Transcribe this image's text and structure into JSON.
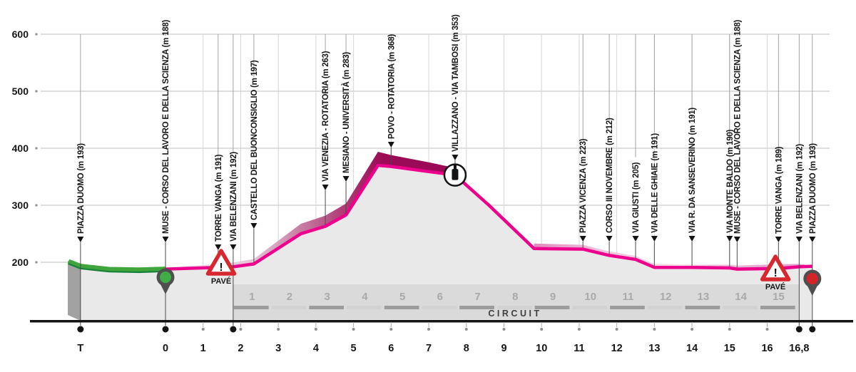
{
  "chart_data": {
    "type": "area",
    "description": "Race elevation profile with circuit laps",
    "y_axis": {
      "ticks": [
        600,
        500,
        400,
        300,
        200
      ],
      "unit": "m"
    },
    "x_axis": {
      "unit": "km",
      "ticks": [
        {
          "label": "T",
          "km": -2.26
        },
        {
          "label": "0",
          "km": 0
        },
        {
          "label": "1",
          "km": 1
        },
        {
          "label": "2",
          "km": 2
        },
        {
          "label": "3",
          "km": 3
        },
        {
          "label": "4",
          "km": 4
        },
        {
          "label": "5",
          "km": 5
        },
        {
          "label": "6",
          "km": 6
        },
        {
          "label": "7",
          "km": 7
        },
        {
          "label": "8",
          "km": 8
        },
        {
          "label": "9",
          "km": 9
        },
        {
          "label": "10",
          "km": 10
        },
        {
          "label": "11",
          "km": 11
        },
        {
          "label": "12",
          "km": 12
        },
        {
          "label": "13",
          "km": 13
        },
        {
          "label": "14",
          "km": 14
        },
        {
          "label": "15",
          "km": 15
        },
        {
          "label": "16",
          "km": 16
        },
        {
          "label": "16,8",
          "km": 16.85
        }
      ],
      "dot_kms": [
        -2.26,
        0,
        1.8,
        16.85,
        17.2
      ]
    },
    "waypoints": [
      {
        "label": "PIAZZA DUOMO",
        "alt": 193,
        "km": -2.26,
        "dot": true
      },
      {
        "label": "MUSE - CORSO DEL LAVORO E DELLA SCIENZA",
        "alt": 188,
        "km": 0,
        "dot": true
      },
      {
        "label": "TORRE VANGA",
        "alt": 191,
        "km": 1.4,
        "dot": false
      },
      {
        "label": "VIA BELENZANI",
        "alt": 192,
        "km": 1.8,
        "dot": true
      },
      {
        "label": "CASTELLO DEL BUONCONSIGLIO",
        "alt": 197,
        "km": 2.35,
        "dot": false
      },
      {
        "label": "VIA VENEZIA - ROTATORIA",
        "alt": 263,
        "km": 4.25,
        "dot": false
      },
      {
        "label": "MESIANO - UNIVERSITÀ",
        "alt": 283,
        "km": 4.8,
        "dot": false
      },
      {
        "label": "POVO - ROTATORIA",
        "alt": 368,
        "km": 6.0,
        "dot": false
      },
      {
        "label": "VILLAZZANO - VIA TAMBOSI",
        "alt": 353,
        "km": 7.7,
        "dot": false
      },
      {
        "label": "PIAZZA VICENZA",
        "alt": 223,
        "km": 11.1,
        "dot": false
      },
      {
        "label": "CORSO III NOVEMBRE",
        "alt": 212,
        "km": 11.8,
        "dot": false
      },
      {
        "label": "VIA GIUSTI",
        "alt": 205,
        "km": 12.5,
        "dot": false
      },
      {
        "label": "VIA DELLE GHIAIE",
        "alt": 191,
        "km": 13.0,
        "dot": false
      },
      {
        "label": "VIA R. DA SANSEVERINO",
        "alt": 191,
        "km": 14.0,
        "dot": false
      },
      {
        "label": "VIA MONTE BALDO",
        "alt": 190,
        "km": 15.0,
        "dot": false
      },
      {
        "label": "MUSE - CORSO DEL LAVORO E DELLA SCIENZA",
        "alt": 188,
        "km": 15.2,
        "dot": false
      },
      {
        "label": "TORRE VANGA",
        "alt": 189,
        "km": 16.3,
        "dot": false
      },
      {
        "label": "VIA BELENZANI",
        "alt": 192,
        "km": 16.85,
        "dot": true
      },
      {
        "label": "PIAZZA DUOMO",
        "alt": 193,
        "km": 17.2,
        "dot": true
      }
    ],
    "profile": [
      [
        -2.26,
        193
      ],
      [
        -1.5,
        187.5
      ],
      [
        -0.7,
        186.5
      ],
      [
        0,
        188
      ],
      [
        1.4,
        191
      ],
      [
        1.8,
        192
      ],
      [
        2.35,
        197
      ],
      [
        3.6,
        250
      ],
      [
        4.25,
        263
      ],
      [
        4.8,
        283
      ],
      [
        5.65,
        370
      ],
      [
        6.0,
        368
      ],
      [
        7.0,
        359
      ],
      [
        7.7,
        353
      ],
      [
        8.6,
        300
      ],
      [
        9.8,
        224
      ],
      [
        10.5,
        223.5
      ],
      [
        11.1,
        223
      ],
      [
        11.8,
        212
      ],
      [
        12.5,
        205
      ],
      [
        13.0,
        191
      ],
      [
        14.0,
        191
      ],
      [
        15.0,
        190
      ],
      [
        15.2,
        188
      ],
      [
        16.3,
        189
      ],
      [
        16.85,
        192
      ],
      [
        17.2,
        193
      ]
    ],
    "green_until_km": 0,
    "circuit": {
      "label": "CIRCUIT",
      "laps": [
        1,
        2,
        3,
        4,
        5,
        6,
        7,
        8,
        9,
        10,
        11,
        12,
        13,
        14,
        15
      ],
      "start_km": 1.8,
      "end_km": 16.85
    },
    "markers": {
      "start_pin": {
        "km": 0,
        "name": "start"
      },
      "finish_pin": {
        "km": 17.2,
        "name": "finish"
      },
      "pave": [
        {
          "km": 1.48,
          "label": "PAVÉ",
          "symbol": "!"
        },
        {
          "km": 16.22,
          "label": "PAVÉ",
          "symbol": "!"
        }
      ],
      "feed_station": {
        "km": 7.7
      }
    },
    "colors": {
      "line_pink": "#ec008c",
      "climb_dark": "#9b0a56",
      "fade_pink": "#f2d3e5",
      "green": "#3fa53c",
      "green_dark": "#18813a",
      "hill_fill": "#e9e9e9",
      "side_face": "#a2a2a2",
      "band_bg": "#dadada",
      "dash_dark": "#9c9c9c",
      "dash_light": "#d2d2d2",
      "pave_red": "#d7282f",
      "pin_body": "#4f4f4f",
      "pin_green": "#3fae47",
      "pin_red": "#d5232a",
      "axis": "#141414",
      "grid": "#cccccc"
    }
  }
}
